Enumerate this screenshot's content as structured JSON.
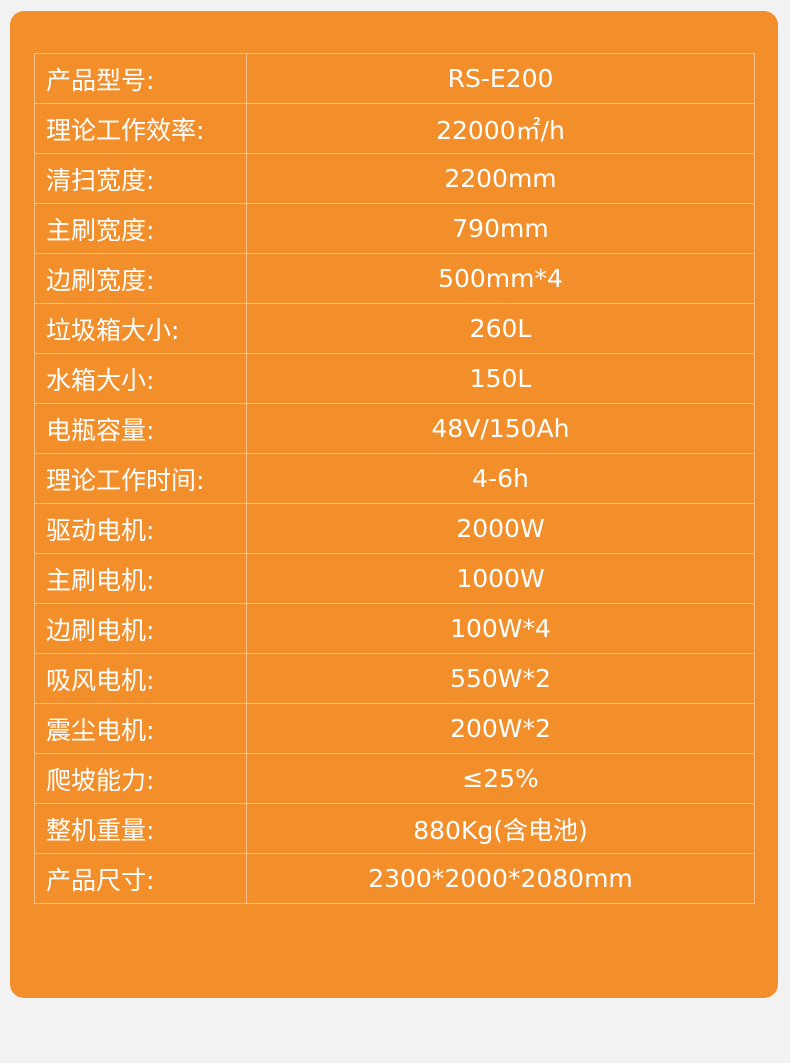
{
  "specs": [
    {
      "label": "产品型号:",
      "value": "RS-E200"
    },
    {
      "label": "理论工作效率:",
      "value": "22000㎡/h"
    },
    {
      "label": "清扫宽度:",
      "value": "2200mm"
    },
    {
      "label": "主刷宽度:",
      "value": "790mm"
    },
    {
      "label": "边刷宽度:",
      "value": "500mm*4"
    },
    {
      "label": "垃圾箱大小:",
      "value": "260L"
    },
    {
      "label": "水箱大小:",
      "value": "150L"
    },
    {
      "label": "电瓶容量:",
      "value": "48V/150Ah"
    },
    {
      "label": "理论工作时间:",
      "value": "4-6h"
    },
    {
      "label": "驱动电机:",
      "value": "2000W"
    },
    {
      "label": "主刷电机:",
      "value": "1000W"
    },
    {
      "label": "边刷电机:",
      "value": "100W*4"
    },
    {
      "label": "吸风电机:",
      "value": "550W*2"
    },
    {
      "label": "震尘电机:",
      "value": "200W*2"
    },
    {
      "label": "爬坡能力:",
      "value": "≤25%"
    },
    {
      "label": "整机重量:",
      "value": "880Kg(含电池)"
    },
    {
      "label": "产品尺寸:",
      "value": "2300*2000*2080mm"
    }
  ],
  "colors": {
    "card": "#f28f2b",
    "border": "#f7c08a",
    "text": "#ffffff"
  }
}
